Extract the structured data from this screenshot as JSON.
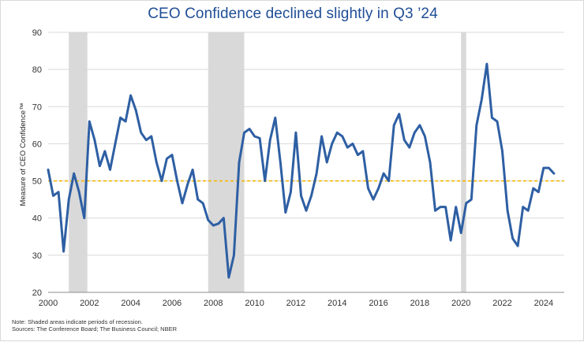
{
  "chart_data": {
    "type": "line",
    "title": "CEO Confidence declined slightly in Q3 ’24",
    "ylabel": "Measure of CEO Confidence™",
    "xlabel": "",
    "xlim": [
      2000,
      2025
    ],
    "ylim": [
      20,
      90
    ],
    "x_ticks": [
      2000,
      2002,
      2004,
      2006,
      2008,
      2010,
      2012,
      2014,
      2016,
      2018,
      2020,
      2022,
      2024
    ],
    "y_ticks": [
      20,
      30,
      40,
      50,
      60,
      70,
      80,
      90
    ],
    "grid": true,
    "reference_line": {
      "value": 50,
      "color": "#f5b800",
      "style": "dashed"
    },
    "recessions": [
      {
        "start": 2001.0,
        "end": 2001.9
      },
      {
        "start": 2007.75,
        "end": 2009.5
      },
      {
        "start": 2020.0,
        "end": 2020.25
      }
    ],
    "series": [
      {
        "name": "CEO Confidence",
        "color": "#2e5fa3",
        "x": [
          2000.0,
          2000.25,
          2000.5,
          2000.75,
          2001.0,
          2001.25,
          2001.5,
          2001.75,
          2002.0,
          2002.25,
          2002.5,
          2002.75,
          2003.0,
          2003.25,
          2003.5,
          2003.75,
          2004.0,
          2004.25,
          2004.5,
          2004.75,
          2005.0,
          2005.25,
          2005.5,
          2005.75,
          2006.0,
          2006.25,
          2006.5,
          2006.75,
          2007.0,
          2007.25,
          2007.5,
          2007.75,
          2008.0,
          2008.25,
          2008.5,
          2008.75,
          2009.0,
          2009.25,
          2009.5,
          2009.75,
          2010.0,
          2010.25,
          2010.5,
          2010.75,
          2011.0,
          2011.25,
          2011.5,
          2011.75,
          2012.0,
          2012.25,
          2012.5,
          2012.75,
          2013.0,
          2013.25,
          2013.5,
          2013.75,
          2014.0,
          2014.25,
          2014.5,
          2014.75,
          2015.0,
          2015.25,
          2015.5,
          2015.75,
          2016.0,
          2016.25,
          2016.5,
          2016.75,
          2017.0,
          2017.25,
          2017.5,
          2017.75,
          2018.0,
          2018.25,
          2018.5,
          2018.75,
          2019.0,
          2019.25,
          2019.5,
          2019.75,
          2020.0,
          2020.25,
          2020.5,
          2020.75,
          2021.0,
          2021.25,
          2021.5,
          2021.75,
          2022.0,
          2022.25,
          2022.5,
          2022.75,
          2023.0,
          2023.25,
          2023.5,
          2023.75,
          2024.0,
          2024.25,
          2024.5
        ],
        "values": [
          53,
          46,
          47,
          31,
          45,
          52,
          47,
          40,
          66,
          61,
          54,
          58,
          53,
          60,
          67,
          66,
          73,
          69,
          63,
          61,
          62,
          55,
          50,
          56,
          57,
          50,
          44,
          49,
          53,
          45,
          44,
          39.5,
          38,
          38.5,
          40,
          24,
          30,
          55,
          63,
          64,
          62,
          61.5,
          50,
          61,
          67,
          55,
          41.5,
          47,
          63,
          46,
          42,
          46,
          52,
          62,
          55,
          60,
          63,
          62,
          59,
          60,
          57,
          58,
          48,
          45,
          48,
          52,
          50,
          65,
          68,
          61,
          59,
          63,
          65,
          62,
          55,
          42,
          43,
          43,
          34,
          43,
          36,
          44,
          45,
          65,
          72,
          81.5,
          67,
          66,
          58,
          42,
          34.5,
          32.5,
          43,
          42,
          48,
          47,
          53.5,
          53.5,
          52
        ]
      }
    ],
    "notes": [
      "Note: Shaded areas indicate periods of recession.",
      "Sources: The Conference Board; The Business Council; NBER"
    ]
  }
}
